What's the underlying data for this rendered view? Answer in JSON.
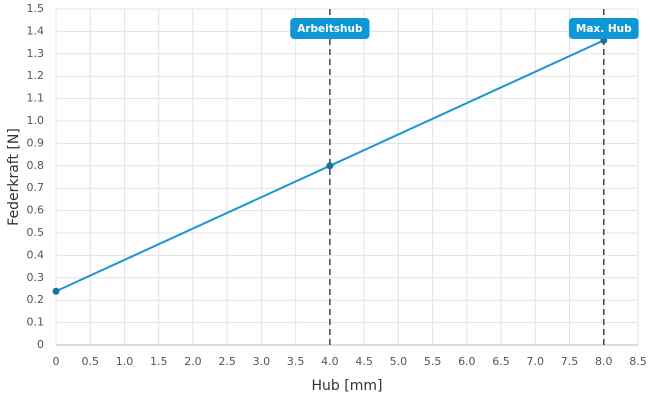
{
  "chart_data": {
    "type": "line",
    "x_label": "Hub [mm]",
    "y_label": "Federkraft [N]",
    "x": [
      0,
      4,
      8
    ],
    "values": [
      0.24,
      0.8,
      1.36
    ],
    "color": "#1b96d3",
    "marker_color": "#1a6fa3",
    "xlim": [
      0,
      8.5
    ],
    "xticks": [
      0,
      0.5,
      {
        "value": 1,
        "label": "1.0"
      },
      1.5,
      {
        "value": 2,
        "label": "2.0"
      },
      2.5,
      {
        "value": 3,
        "label": "3.0"
      },
      3.5,
      {
        "value": 4,
        "label": "4.0"
      },
      4.5,
      {
        "value": 5,
        "label": "5.0"
      },
      5.5,
      {
        "value": 6,
        "label": "6.0"
      },
      6.5,
      {
        "value": 7,
        "label": "7.0"
      },
      7.5,
      {
        "value": 8,
        "label": "8.0"
      },
      8.5
    ],
    "ylim": [
      0,
      1.5
    ],
    "yticks": [
      0,
      0.1,
      0.2,
      0.3,
      0.4,
      0.5,
      0.6,
      0.7,
      0.8,
      0.9,
      {
        "value": 1,
        "label": "1.0"
      },
      1.1,
      1.2,
      1.3,
      1.4,
      1.5
    ],
    "grid": true,
    "annotations": [
      {
        "x": 4,
        "label": "Arbeitshub"
      },
      {
        "x": 8,
        "label": "Max. Hub"
      }
    ],
    "annotation_color": "#0d97d6"
  }
}
